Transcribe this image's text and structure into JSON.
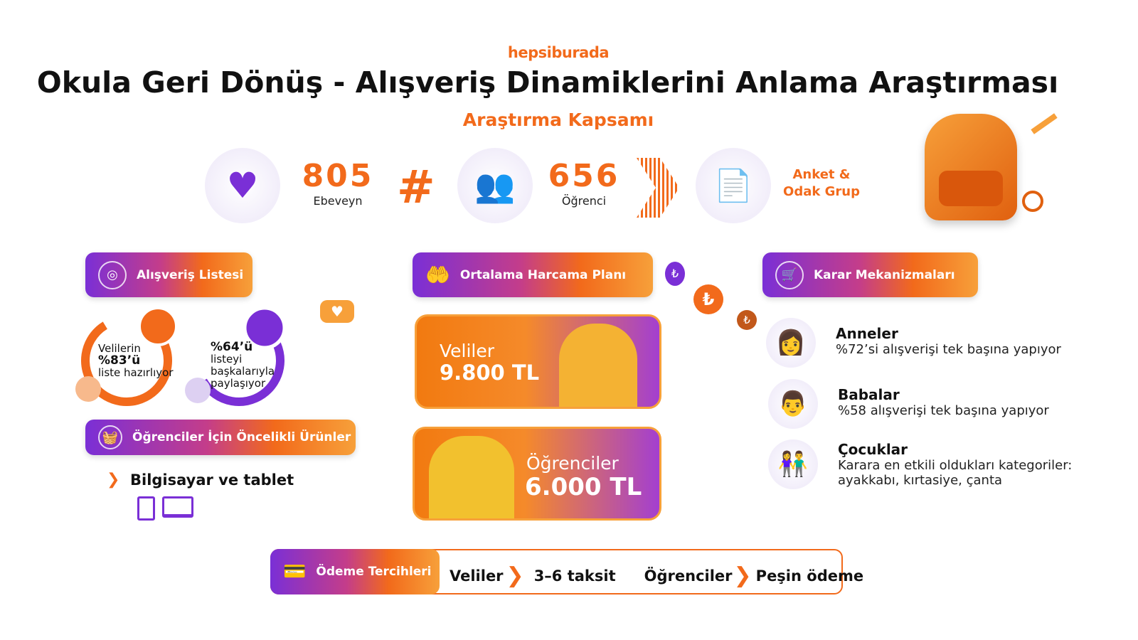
{
  "brand": "hepsiburada",
  "title": "Okula Geri Dönüş - Alışveriş Dinamiklerini Anlama Araştırması",
  "subtitle": "Araştırma Kapsamı",
  "scope": {
    "parents": {
      "value": "805",
      "label": "Ebeveyn"
    },
    "students": {
      "value": "656",
      "label": "Öğrenci"
    },
    "method": "Anket & Odak Grup"
  },
  "shopping_list": {
    "title": "Alışveriş Listesi",
    "stat1": {
      "line1": "Velilerin",
      "pct": "%83’ü",
      "line2": "liste hazırlıyor",
      "value": 83
    },
    "stat2": {
      "pct": "%64’ü",
      "line1": "listeyi",
      "line2": "başkalarıyla",
      "line3": "paylaşıyor",
      "value": 64
    }
  },
  "priority": {
    "title": "Öğrenciler İçin Öncelikli Ürünler",
    "item": "Bilgisayar ve tablet"
  },
  "spending": {
    "title": "Ortalama Harcama Planı",
    "parents": {
      "label": "Veliler",
      "amount": "9.800 TL"
    },
    "students": {
      "label": "Öğrenciler",
      "amount": "6.000 TL"
    }
  },
  "decision": {
    "title": "Karar Mekanizmaları",
    "items": [
      {
        "title": "Anneler",
        "desc": "%72’si alışverişi tek başına yapıyor"
      },
      {
        "title": "Babalar",
        "desc": "%58 alışverişi tek başına yapıyor"
      },
      {
        "title": "Çocuklar",
        "desc": "Karara en etkili oldukları kategoriler:",
        "desc2": "ayakkabı, kırtasiye, çanta"
      }
    ]
  },
  "payment": {
    "title": "Ödeme Tercihleri",
    "g1": "Veliler",
    "v1": "3–6 taksit",
    "g2": "Öğrenciler",
    "v2": "Peşin ödeme"
  },
  "colors": {
    "orange": "#f26a1b",
    "purple": "#7a2fd6"
  }
}
